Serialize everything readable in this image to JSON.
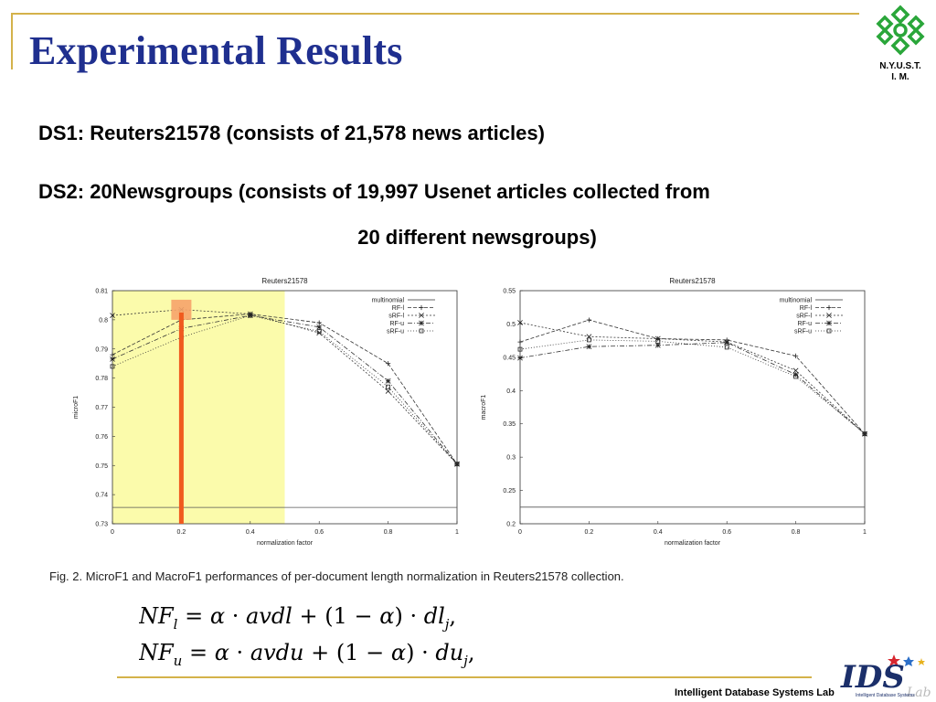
{
  "slide": {
    "title": "Experimental Results",
    "logo_line1": "N.Y.U.S.T.",
    "logo_line2": "I. M.",
    "ds1": "DS1: Reuters21578 (consists of 21,578 news articles)",
    "ds2_line1": "DS2: 20Newsgroups (consists of 19,997 Usenet articles collected from",
    "ds2_line2": "20 different newsgroups)",
    "caption": "Fig. 2. MicroF1 and MacroF1 performances of per-document length normalization in Reuters21578 collection.",
    "formula1": "NFl = α · avdl + (1 − α) · dlj,",
    "formula2": "NFu = α · avdu + (1 − α) · duj,",
    "footer_label": "Intelligent Database Systems Lab",
    "lab_logo_text": "IDS",
    "lab_logo_sub": "Lab",
    "lab_logo_small": "Intelligent Database Systems"
  },
  "colors": {
    "title": "#1f2f8f",
    "rule": "#d4b24a",
    "highlight": "#fbfbab",
    "marker_bar": "#f05a1e",
    "marker_box": "#f6a36a",
    "logo_green": "#2aa63a"
  },
  "chart_data": [
    {
      "type": "line",
      "title": "Reuters21578",
      "xlabel": "normalization factor",
      "ylabel": "microF1",
      "x": [
        0,
        0.2,
        0.4,
        0.6,
        0.8,
        1
      ],
      "xticks": [
        "0",
        "0.2",
        "0.4",
        "0.6",
        "0.8",
        "1"
      ],
      "ylim": [
        0.73,
        0.81
      ],
      "yticks": [
        "0.73",
        "0.74",
        "0.75",
        "0.76",
        "0.77",
        "0.78",
        "0.79",
        "0.8",
        "0.81"
      ],
      "legend_position": "top-right",
      "highlight_x_range": [
        0,
        0.5
      ],
      "marker_x": 0.2,
      "marker_y": 0.8025,
      "series": [
        {
          "name": "multinomial",
          "marker": "none",
          "dash": "",
          "values": [
            0.7356,
            0.7356,
            0.7356,
            0.7356,
            0.7356,
            0.7356
          ]
        },
        {
          "name": "RF-l",
          "marker": "plus",
          "dash": "4,2",
          "values": [
            0.788,
            0.8,
            0.802,
            0.799,
            0.785,
            0.7505
          ]
        },
        {
          "name": "sRF-l",
          "marker": "x",
          "dash": "2,2",
          "values": [
            0.8015,
            0.8035,
            0.802,
            0.7955,
            0.7755,
            0.7505
          ]
        },
        {
          "name": "RF-u",
          "marker": "star",
          "dash": "5,2,1,2",
          "values": [
            0.7865,
            0.797,
            0.8015,
            0.7975,
            0.779,
            0.7505
          ]
        },
        {
          "name": "sRF-u",
          "marker": "square",
          "dash": "1,2",
          "values": [
            0.784,
            0.794,
            0.8015,
            0.796,
            0.777,
            0.7505
          ]
        }
      ]
    },
    {
      "type": "line",
      "title": "Reuters21578",
      "xlabel": "normalization factor",
      "ylabel": "macroF1",
      "x": [
        0,
        0.2,
        0.4,
        0.6,
        0.8,
        1
      ],
      "xticks": [
        "0",
        "0.2",
        "0.4",
        "0.6",
        "0.8",
        "1"
      ],
      "ylim": [
        0.2,
        0.55
      ],
      "yticks": [
        "0.2",
        "0.25",
        "0.3",
        "0.35",
        "0.4",
        "0.45",
        "0.5",
        "0.55"
      ],
      "legend_position": "top-right",
      "series": [
        {
          "name": "multinomial",
          "marker": "none",
          "dash": "",
          "values": [
            0.225,
            0.225,
            0.225,
            0.225,
            0.225,
            0.225
          ]
        },
        {
          "name": "RF-l",
          "marker": "plus",
          "dash": "4,2",
          "values": [
            0.473,
            0.506,
            0.478,
            0.476,
            0.452,
            0.335
          ]
        },
        {
          "name": "sRF-l",
          "marker": "x",
          "dash": "2,2",
          "values": [
            0.502,
            0.481,
            0.478,
            0.473,
            0.43,
            0.335
          ]
        },
        {
          "name": "RF-u",
          "marker": "star",
          "dash": "5,2,1,2",
          "values": [
            0.449,
            0.466,
            0.468,
            0.472,
            0.424,
            0.335
          ]
        },
        {
          "name": "sRF-u",
          "marker": "square",
          "dash": "1,2",
          "values": [
            0.462,
            0.476,
            0.474,
            0.465,
            0.421,
            0.335
          ]
        }
      ]
    }
  ]
}
